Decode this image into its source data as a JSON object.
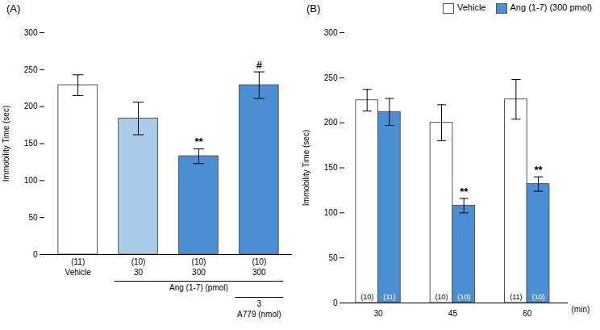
{
  "chart_data": [
    {
      "type": "bar",
      "title": "(A)",
      "categories": [
        "Vehicle",
        "30",
        "300",
        "300"
      ],
      "n_labels": [
        "(11)",
        "(10)",
        "(10)",
        "(10)"
      ],
      "values": [
        229,
        184,
        133,
        229
      ],
      "errors": [
        14,
        22,
        10,
        18
      ],
      "colors": [
        "white",
        "#aacce8",
        "#4a8fd4",
        "#4a8fd4"
      ],
      "significance": [
        null,
        null,
        "**",
        "#"
      ],
      "group_labels": [
        {
          "label": "Ang (1-7) (pmol)",
          "bars": [
            1,
            3
          ]
        },
        {
          "label_top": "3",
          "label": "A779 (nmol)",
          "bars": [
            3,
            3
          ]
        }
      ],
      "ylabel": "Immobility Time (sec)",
      "ylim": [
        0,
        300
      ],
      "yticks": [
        0,
        50,
        100,
        150,
        200,
        250,
        300
      ]
    },
    {
      "type": "bar",
      "title": "(B)",
      "categories": [
        "30",
        "45",
        "60"
      ],
      "xlabel": "(min)",
      "series": [
        {
          "name": "Vehicle",
          "color": "white",
          "values": [
            225,
            200,
            226
          ],
          "errors": [
            12,
            20,
            22
          ],
          "n_labels": [
            "(10)",
            "(10)",
            "(11)"
          ],
          "significance": [
            null,
            null,
            null
          ]
        },
        {
          "name": "Ang (1-7) (300 pmol)",
          "color": "#4a8fd4",
          "values": [
            212,
            108,
            132
          ],
          "errors": [
            15,
            8,
            8
          ],
          "n_labels": [
            "(11)",
            "(10)",
            "(10)"
          ],
          "significance": [
            null,
            "**",
            "**"
          ]
        }
      ],
      "legend": "upper right",
      "ylabel": "Immobility Time (sec)",
      "ylim": [
        0,
        300
      ],
      "yticks": [
        0,
        50,
        100,
        150,
        200,
        250,
        300
      ]
    }
  ]
}
